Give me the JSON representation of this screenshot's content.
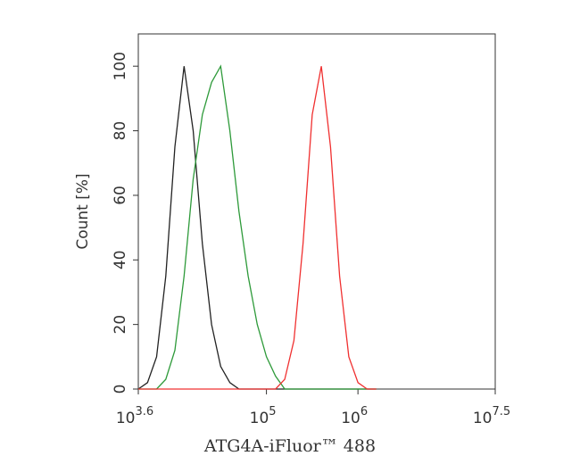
{
  "chart_data": {
    "type": "line",
    "xlabel": "ATG4A-iFluor™ 488",
    "ylabel": "Count [%]",
    "xscale": "log",
    "x": [
      3981,
      5012,
      6310,
      7943,
      10000,
      12589,
      15849,
      19953,
      25119,
      31623,
      39811,
      50119,
      63096,
      79433,
      100000,
      125893,
      158489,
      199526,
      251189,
      316228,
      398107,
      501187,
      630957,
      794328,
      1000000,
      1258925,
      1584893
    ],
    "series": [
      {
        "color": "#222222",
        "values": [
          0,
          2,
          10,
          35,
          75,
          100,
          80,
          45,
          20,
          7,
          2,
          0,
          0,
          0,
          0,
          0,
          0,
          0,
          0,
          0,
          0,
          0,
          0,
          0,
          0,
          0,
          0
        ]
      },
      {
        "color": "#2e9a3a",
        "values": [
          0,
          0,
          0,
          3,
          12,
          35,
          65,
          85,
          95,
          100,
          80,
          55,
          35,
          20,
          10,
          4,
          0,
          0,
          0,
          0,
          0,
          0,
          0,
          0,
          0,
          0,
          0
        ]
      },
      {
        "color": "#f03030",
        "values": [
          0,
          0,
          0,
          0,
          0,
          0,
          0,
          0,
          0,
          0,
          0,
          0,
          0,
          0,
          0,
          0,
          3,
          15,
          45,
          85,
          100,
          75,
          35,
          10,
          2,
          0,
          0
        ]
      }
    ],
    "xlim": [
      3981,
      31622777
    ],
    "xticks": [
      {
        "value": 3981,
        "label": "10",
        "sup": "3.6"
      },
      {
        "value": 100000,
        "label": "10",
        "sup": "5"
      },
      {
        "value": 1000000,
        "label": "10",
        "sup": "6"
      },
      {
        "value": 31622777,
        "label": "10",
        "sup": "7.5"
      }
    ],
    "ylim": [
      0,
      110
    ],
    "yticks": [
      0,
      20,
      40,
      60,
      80,
      100
    ]
  }
}
